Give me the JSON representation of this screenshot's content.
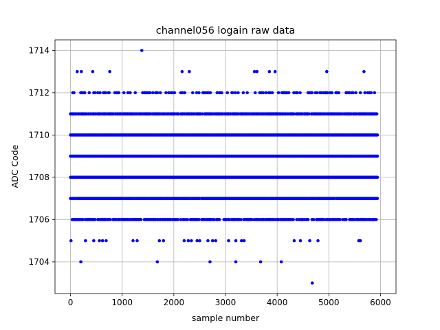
{
  "chart_data": {
    "type": "scatter",
    "title": "channel056 logain raw data",
    "xlabel": "sample number",
    "ylabel": "ADC Code",
    "xlim": [
      -300,
      6300
    ],
    "ylim": [
      1702.5,
      1714.5
    ],
    "xticks": [
      0,
      1000,
      2000,
      3000,
      4000,
      5000,
      6000
    ],
    "yticks": [
      1704,
      1706,
      1708,
      1710,
      1712,
      1714
    ],
    "grid": true,
    "marker_color": "#0000ff",
    "dense_rows": {
      "x_range": [
        0,
        5950
      ],
      "levels": [
        {
          "y": 1706,
          "density": 0.55
        },
        {
          "y": 1707,
          "density": 0.95
        },
        {
          "y": 1708,
          "density": 1.0
        },
        {
          "y": 1709,
          "density": 1.0
        },
        {
          "y": 1710,
          "density": 1.0
        },
        {
          "y": 1711,
          "density": 0.75
        },
        {
          "y": 1712,
          "density": 0.2
        }
      ]
    },
    "sparse_points": {
      "y1714": [
        1380
      ],
      "y1713": [
        130,
        210,
        430,
        760,
        2160,
        2300,
        3560,
        3610,
        3850,
        3960,
        4960,
        5680
      ],
      "y1705": [
        10,
        290,
        450,
        560,
        620,
        690,
        1210,
        1290,
        1720,
        1800,
        2200,
        2280,
        2340,
        2450,
        2500,
        2660,
        2750,
        2810,
        3060,
        3200,
        3310,
        3360,
        4330,
        4450,
        4630,
        4790,
        5580,
        5610
      ],
      "y1704": [
        200,
        1680,
        2700,
        3200,
        3680,
        4080
      ],
      "y1703": [
        4680
      ]
    }
  }
}
